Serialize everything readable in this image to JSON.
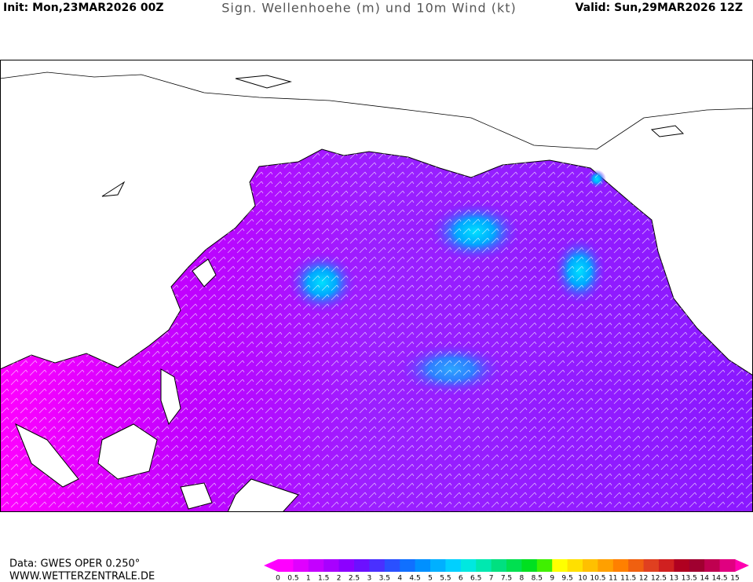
{
  "header": {
    "init": "Init: Mon,23MAR2026 00Z",
    "title": "Sign. Wellenhoehe (m) und 10m Wind (kt)",
    "valid": "Valid: Sun,29MAR2026 12Z"
  },
  "footer": {
    "source": "Data: GWES OPER 0.250°",
    "website": "WWW.WETTERZENTRALE.DE"
  },
  "colorbar": {
    "labels": [
      0,
      0.5,
      1,
      1.5,
      2,
      2.5,
      3,
      3.5,
      4,
      4.5,
      5,
      5.5,
      6,
      6.5,
      7,
      7.5,
      8,
      8.5,
      9,
      9.5,
      10,
      10.5,
      11,
      11.5,
      12,
      12.5,
      13,
      13.5,
      14,
      14.5,
      15
    ],
    "colors": [
      "#ff00ff",
      "#e000ff",
      "#c400ff",
      "#a800ff",
      "#8c00ff",
      "#6c10ff",
      "#4a30ff",
      "#2a50ff",
      "#1070ff",
      "#0090ff",
      "#00b0ff",
      "#00d0ff",
      "#00e8e0",
      "#00e8b0",
      "#00e080",
      "#00e050",
      "#00e020",
      "#40f000",
      "#ffff00",
      "#ffe000",
      "#ffc000",
      "#ffa000",
      "#ff8000",
      "#f06010",
      "#e04020",
      "#d02020",
      "#b00020",
      "#a00030",
      "#c00050",
      "#e00080",
      "#ff00b0"
    ],
    "under_color": "#ff00ff",
    "over_color": "#ff00b0"
  }
}
